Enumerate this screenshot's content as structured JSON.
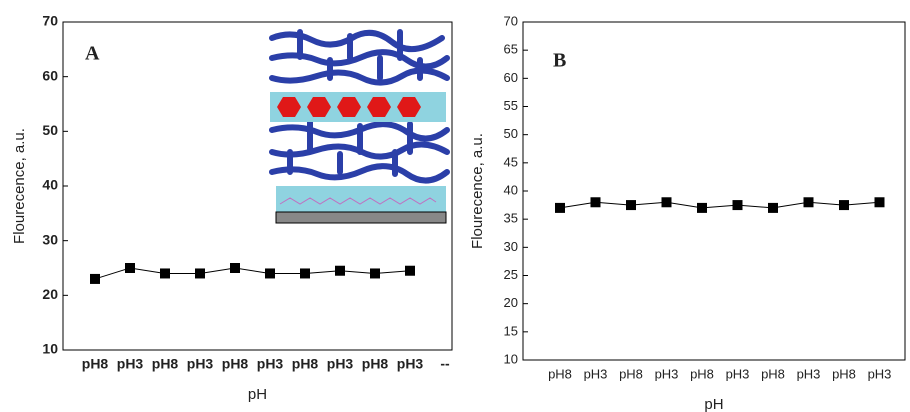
{
  "chart_data": [
    {
      "type": "line",
      "panel_label": "A",
      "x_label": "pH",
      "y_label": "Flourecence, a.u.",
      "categories": [
        "pH8",
        "pH3",
        "pH8",
        "pH3",
        "pH8",
        "pH3",
        "pH8",
        "pH3",
        "pH8",
        "pH3",
        "--"
      ],
      "values": [
        23,
        25,
        24,
        24,
        25,
        24,
        24,
        24.5,
        24,
        24.5,
        null
      ],
      "color": "#000000",
      "ylim": [
        10,
        70
      ],
      "yticks": [
        10,
        20,
        30,
        40,
        50,
        60,
        70
      ]
    },
    {
      "type": "line",
      "panel_label": "B",
      "x_label": "pH",
      "y_label": "Flourecence, a.u.",
      "categories": [
        "pH8",
        "pH3",
        "pH8",
        "pH3",
        "pH8",
        "pH3",
        "pH8",
        "pH3",
        "pH8",
        "pH3"
      ],
      "values": [
        37,
        38,
        37.5,
        38,
        37,
        37.5,
        37,
        38,
        37.5,
        38
      ],
      "color": "#000000",
      "ylim": [
        10,
        70
      ],
      "yticks": [
        10,
        15,
        20,
        25,
        30,
        35,
        40,
        45,
        50,
        55,
        60,
        65,
        70
      ]
    }
  ]
}
